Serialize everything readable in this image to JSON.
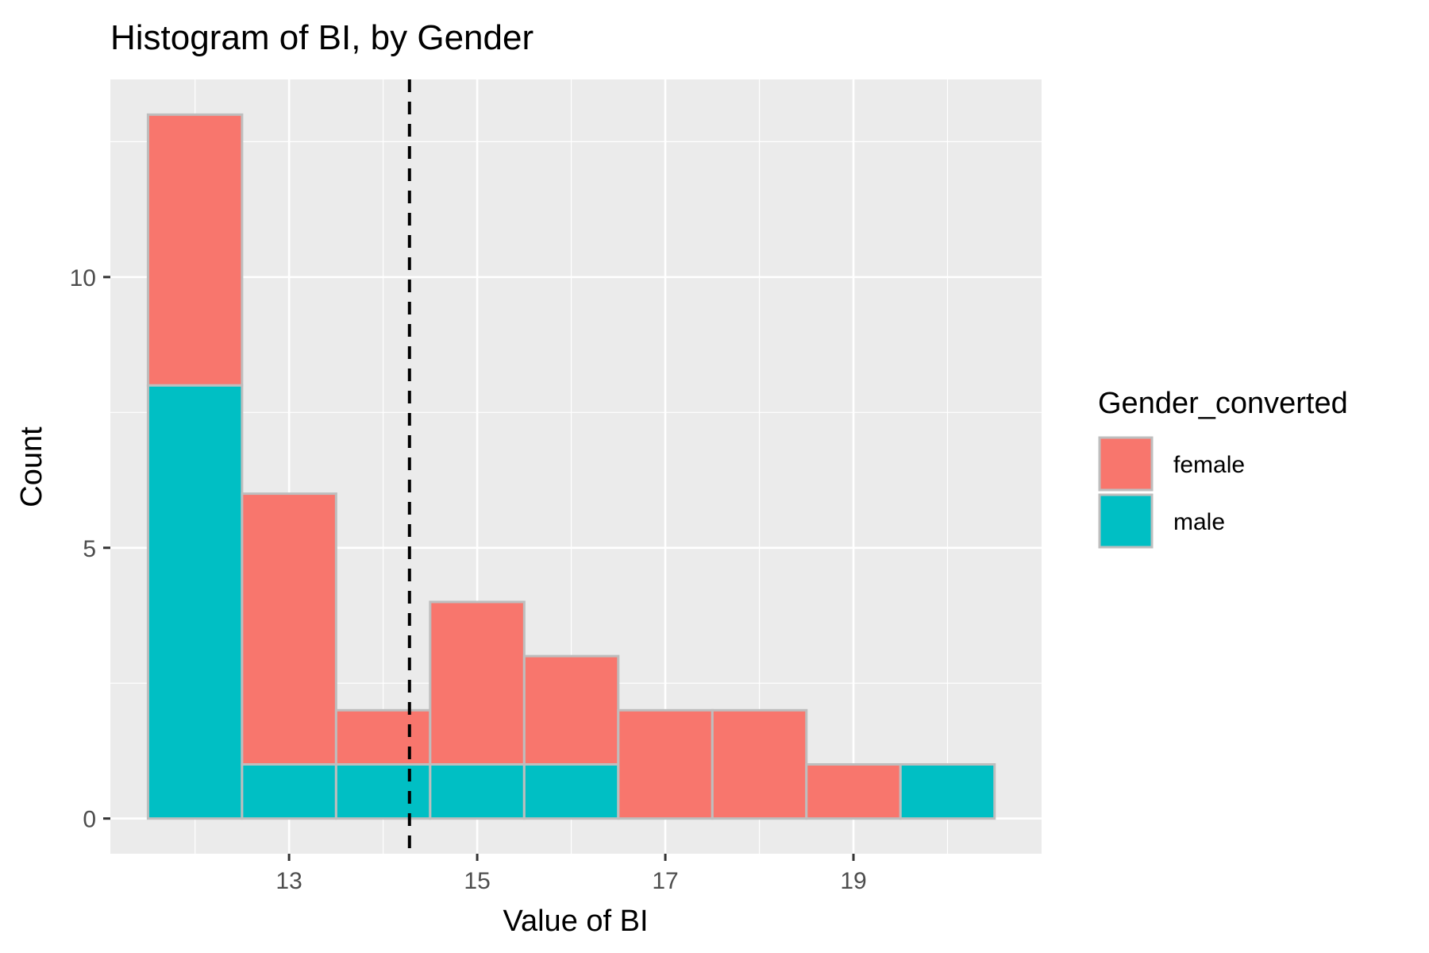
{
  "chart_data": {
    "type": "bar",
    "subtype": "stacked-histogram",
    "title": "Histogram of BI, by Gender",
    "xlabel": "Value of BI",
    "ylabel": "Count",
    "xlim": [
      11.1,
      21.0
    ],
    "ylim": [
      -0.65,
      13.65
    ],
    "x_ticks": [
      13,
      15,
      17,
      19
    ],
    "y_ticks": [
      0,
      5,
      10
    ],
    "bin_width": 1,
    "bin_centers": [
      12,
      13,
      14,
      15,
      16,
      17,
      18,
      19,
      20
    ],
    "series": [
      {
        "name": "male",
        "color": "#00BFC4",
        "values": [
          8,
          1,
          1,
          1,
          1,
          0,
          0,
          0,
          1
        ]
      },
      {
        "name": "female",
        "color": "#F8766D",
        "values": [
          5,
          5,
          1,
          3,
          2,
          2,
          2,
          1,
          0
        ]
      }
    ],
    "reference_line": {
      "x": 14.28,
      "style": "dashed",
      "color": "#000000"
    },
    "grid": true,
    "legend": {
      "title": "Gender_converted",
      "position": "right",
      "entries": [
        {
          "label": "female",
          "color": "#F8766D"
        },
        {
          "label": "male",
          "color": "#00BFC4"
        }
      ]
    }
  }
}
